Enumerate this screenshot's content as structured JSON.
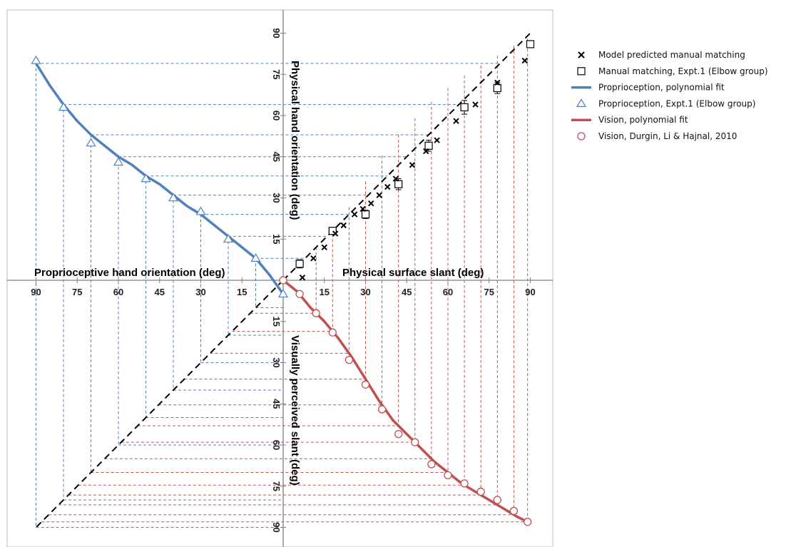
{
  "chart_data": {
    "type": "scatter",
    "axis_titles": {
      "left": "Proprioceptive hand orientation (deg)",
      "right": "Physical surface slant (deg)",
      "up": "Physical hand orientation (deg)",
      "down": "Visually perceived slant (deg)"
    },
    "tick_labels": [
      "15",
      "30",
      "45",
      "60",
      "75",
      "90"
    ],
    "axis_range": [
      0,
      90
    ],
    "colors": {
      "blue": "#4f81bd",
      "red": "#c0504d",
      "black": "#000000"
    },
    "series": [
      {
        "name": "Model predicted manual matching",
        "marker": "x",
        "points": [
          [
            7,
            1
          ],
          [
            11,
            8
          ],
          [
            15,
            12
          ],
          [
            19,
            17
          ],
          [
            22,
            20
          ],
          [
            26,
            24
          ],
          [
            29,
            26
          ],
          [
            32,
            28
          ],
          [
            35,
            31
          ],
          [
            38,
            34
          ],
          [
            41,
            37
          ],
          [
            47,
            42
          ],
          [
            52,
            47
          ],
          [
            56,
            51
          ],
          [
            63,
            58
          ],
          [
            70,
            64
          ],
          [
            78,
            72
          ],
          [
            88,
            80
          ]
        ]
      },
      {
        "name": "Manual matching, Expt.1 (Elbow group)",
        "marker": "square",
        "points": [
          [
            6,
            6
          ],
          [
            18,
            18
          ],
          [
            30,
            24
          ],
          [
            42,
            35
          ],
          [
            53,
            49
          ],
          [
            66,
            63
          ],
          [
            78,
            70
          ],
          [
            90,
            86
          ]
        ],
        "errors": [
          1.5,
          1.2,
          1.5,
          2.0,
          2.0,
          2.5,
          2.0,
          0
        ]
      },
      {
        "name": "Proprioception, polynomial fit",
        "marker": "line"
      },
      {
        "name": "Proprioception, Expt.1 (Elbow group)",
        "marker": "triangle",
        "points": [
          [
            0,
            -5
          ],
          [
            10,
            8
          ],
          [
            20,
            15
          ],
          [
            30,
            25
          ],
          [
            40,
            30
          ],
          [
            50,
            37
          ],
          [
            60,
            43
          ],
          [
            70,
            50
          ],
          [
            80,
            63
          ],
          [
            90,
            80
          ]
        ]
      },
      {
        "name": "Vision, polynomial fit",
        "marker": "line"
      },
      {
        "name": "Vision, Durgin, Li & Hajnal, 2010",
        "marker": "circle",
        "points": [
          [
            0,
            0
          ],
          [
            6,
            5
          ],
          [
            12,
            12
          ],
          [
            18,
            19
          ],
          [
            24,
            29
          ],
          [
            30,
            38
          ],
          [
            36,
            47
          ],
          [
            42,
            56
          ],
          [
            48,
            59
          ],
          [
            54,
            67
          ],
          [
            60,
            71
          ],
          [
            66,
            74
          ],
          [
            72,
            77
          ],
          [
            78,
            80
          ],
          [
            84,
            84
          ],
          [
            89,
            88
          ]
        ]
      }
    ],
    "proprio_fit": [
      [
        0,
        -5
      ],
      [
        5,
        2
      ],
      [
        10,
        8
      ],
      [
        15,
        12
      ],
      [
        20,
        16
      ],
      [
        25,
        20
      ],
      [
        30,
        24
      ],
      [
        35,
        27
      ],
      [
        40,
        31
      ],
      [
        45,
        35
      ],
      [
        50,
        38
      ],
      [
        55,
        42
      ],
      [
        60,
        45
      ],
      [
        65,
        49
      ],
      [
        70,
        53
      ],
      [
        75,
        58
      ],
      [
        80,
        64
      ],
      [
        85,
        71
      ],
      [
        90,
        79
      ]
    ],
    "vision_fit": [
      [
        0,
        0
      ],
      [
        5,
        4
      ],
      [
        10,
        10
      ],
      [
        15,
        15
      ],
      [
        20,
        21
      ],
      [
        25,
        28
      ],
      [
        30,
        36
      ],
      [
        35,
        44
      ],
      [
        40,
        51
      ],
      [
        45,
        56
      ],
      [
        50,
        61
      ],
      [
        55,
        66
      ],
      [
        60,
        70
      ],
      [
        65,
        74
      ],
      [
        70,
        77
      ],
      [
        75,
        80
      ],
      [
        80,
        83
      ],
      [
        85,
        86
      ],
      [
        89,
        88
      ]
    ],
    "blue_guides": [
      10,
      20,
      30,
      40,
      50,
      60,
      70,
      80,
      90
    ],
    "red_guides": [
      12,
      18,
      24,
      30,
      36,
      42,
      48,
      54,
      60,
      66,
      72,
      78,
      84,
      89
    ],
    "legend_placement": "right"
  }
}
